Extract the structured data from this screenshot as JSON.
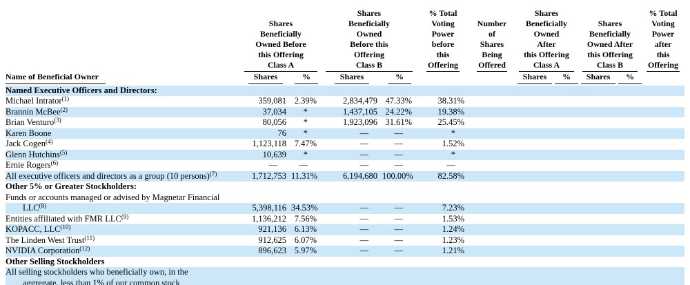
{
  "colors": {
    "row_highlight": "#cce8f8",
    "rule": "#000000",
    "text": "#000000"
  },
  "table": {
    "name_header": "Name of Beneficial Owner",
    "sub": {
      "shares": "Shares",
      "pct": "%"
    },
    "groups": [
      {
        "top": "Shares\nBeneficially\nOwned Before\nthis Offering",
        "bottom": "Class A"
      },
      {
        "top": "Shares\nBeneficially\nOwned\nBefore this\nOffering",
        "bottom": "Class B"
      },
      {
        "top": "% Total\nVoting\nPower\nbefore\nthis",
        "bottom": "Offering"
      },
      {
        "top": "Number\nof\nShares\nBeing",
        "bottom": "Offered"
      },
      {
        "top": "Shares\nBeneficially\nOwned\nAfter\nthis Offering",
        "bottom": "Class A"
      },
      {
        "top": "Shares\nBeneficially\nOwned After\nthis Offering",
        "bottom": "Class B"
      },
      {
        "top": "% Total\nVoting\nPower\nafter\nthis",
        "bottom": "Offering"
      }
    ],
    "rows": [
      {
        "type": "section",
        "label": "Named Executive Officers and Directors:",
        "shade": true
      },
      {
        "type": "data",
        "name": "Michael Intrator",
        "sup": "(1)",
        "shade": false,
        "values": [
          "359,081",
          "2.39%",
          "2,834,479",
          "47.33%",
          "38.31%"
        ]
      },
      {
        "type": "data",
        "name": "Brannin McBee",
        "sup": "(2)",
        "shade": true,
        "values": [
          "37,034",
          "*",
          "1,437,105",
          "24.22%",
          "19.38%"
        ]
      },
      {
        "type": "data",
        "name": "Brian Venturo",
        "sup": "(3)",
        "shade": false,
        "values": [
          "80,056",
          "*",
          "1,923,096",
          "31.61%",
          "25.45%"
        ]
      },
      {
        "type": "data",
        "name": "Karen Boone",
        "sup": "",
        "shade": true,
        "values": [
          "76",
          "*",
          "—",
          "—",
          "*"
        ]
      },
      {
        "type": "data",
        "name": "Jack Cogen",
        "sup": "(4)",
        "shade": false,
        "values": [
          "1,123,118",
          "7.47%",
          "—",
          "—",
          "1.52%"
        ]
      },
      {
        "type": "data",
        "name": "Glenn Hutchins",
        "sup": "(5)",
        "shade": true,
        "values": [
          "10,639",
          "*",
          "—",
          "—",
          "*"
        ]
      },
      {
        "type": "data",
        "name": "Ernie Rogers",
        "sup": "(6)",
        "shade": false,
        "values": [
          "—",
          "—",
          "—",
          "—",
          "—"
        ]
      },
      {
        "type": "data",
        "name": "All executive officers and directors as a group (10 persons)",
        "sup": "(7)",
        "shade": true,
        "values": [
          "1,712,753",
          "11.31%",
          "6,194,680",
          "100.00%",
          "82.58%"
        ]
      },
      {
        "type": "section",
        "label": "Other 5% or Greater Stockholders:",
        "shade": false
      },
      {
        "type": "data",
        "name": "Funds or accounts managed or advised by Magnetar Financial",
        "sup": "",
        "shade": false,
        "values": []
      },
      {
        "type": "data",
        "name": "LLC",
        "sup": "(8)",
        "shade": true,
        "indent": true,
        "values": [
          "5,398,116",
          "34.53%",
          "—",
          "—",
          "7.23%"
        ]
      },
      {
        "type": "data",
        "name": "Entities affiliated with FMR LLC",
        "sup": "(9)",
        "shade": false,
        "values": [
          "1,136,212",
          "7.56%",
          "—",
          "—",
          "1.53%"
        ]
      },
      {
        "type": "data",
        "name": "KOPACC, LLC",
        "sup": "(10)",
        "shade": true,
        "values": [
          "921,136",
          "6.13%",
          "—",
          "—",
          "1.24%"
        ]
      },
      {
        "type": "data",
        "name": "The Linden West Trust",
        "sup": "(11)",
        "shade": false,
        "values": [
          "912,625",
          "6.07%",
          "—",
          "—",
          "1.23%"
        ]
      },
      {
        "type": "data",
        "name": "NVIDIA Corporation",
        "sup": "(12)",
        "shade": true,
        "values": [
          "896,623",
          "5.97%",
          "—",
          "—",
          "1.21%"
        ]
      },
      {
        "type": "section",
        "label": "Other Selling Stockholders",
        "shade": false
      },
      {
        "type": "data",
        "name": "All selling stockholders who beneficially own, in the",
        "sup": "",
        "shade": true,
        "values": []
      },
      {
        "type": "data",
        "name": "aggregate, less than 1% of our common stock",
        "sup": "",
        "shade": true,
        "indent": true,
        "values": []
      }
    ]
  }
}
